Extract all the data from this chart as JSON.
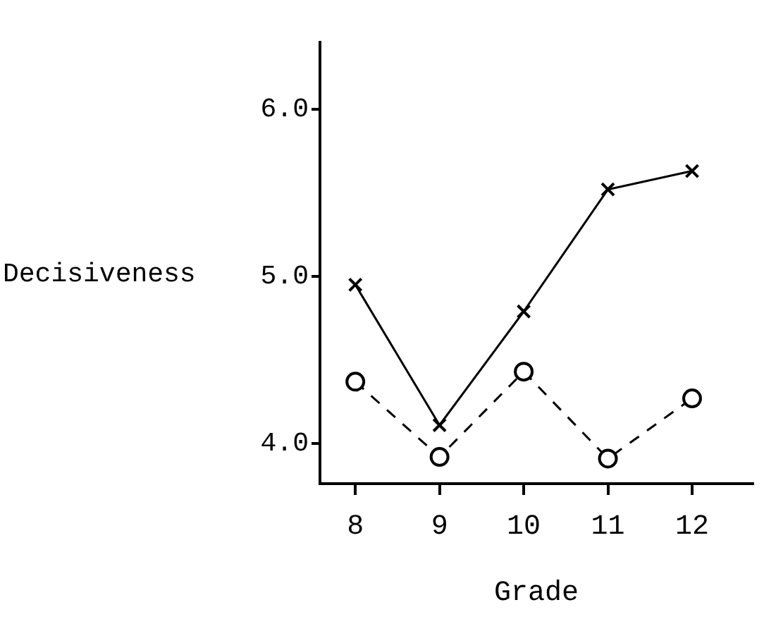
{
  "chart_data": {
    "type": "line",
    "xlabel": "Grade",
    "ylabel": "Decisiveness",
    "x": [
      8,
      9,
      10,
      11,
      12
    ],
    "series": [
      {
        "color": "#000000",
        "marker": "cross",
        "line_style": "solid",
        "values": [
          4.95,
          4.11,
          4.79,
          5.52,
          5.63
        ]
      },
      {
        "color": "#000000",
        "marker": "circle",
        "line_style": "dashed",
        "values": [
          4.37,
          3.92,
          4.43,
          3.91,
          4.27
        ]
      }
    ],
    "xlim": [
      7.58,
      12.72
    ],
    "xticks": [
      8,
      9,
      10,
      11,
      12
    ],
    "ylim": [
      3.76,
      6.4
    ],
    "yticks": [
      {
        "value": 4,
        "label": "4.0"
      },
      {
        "value": 5,
        "label": "5.0"
      },
      {
        "value": 6,
        "label": "6.0"
      }
    ],
    "grid": false,
    "legend": false
  }
}
